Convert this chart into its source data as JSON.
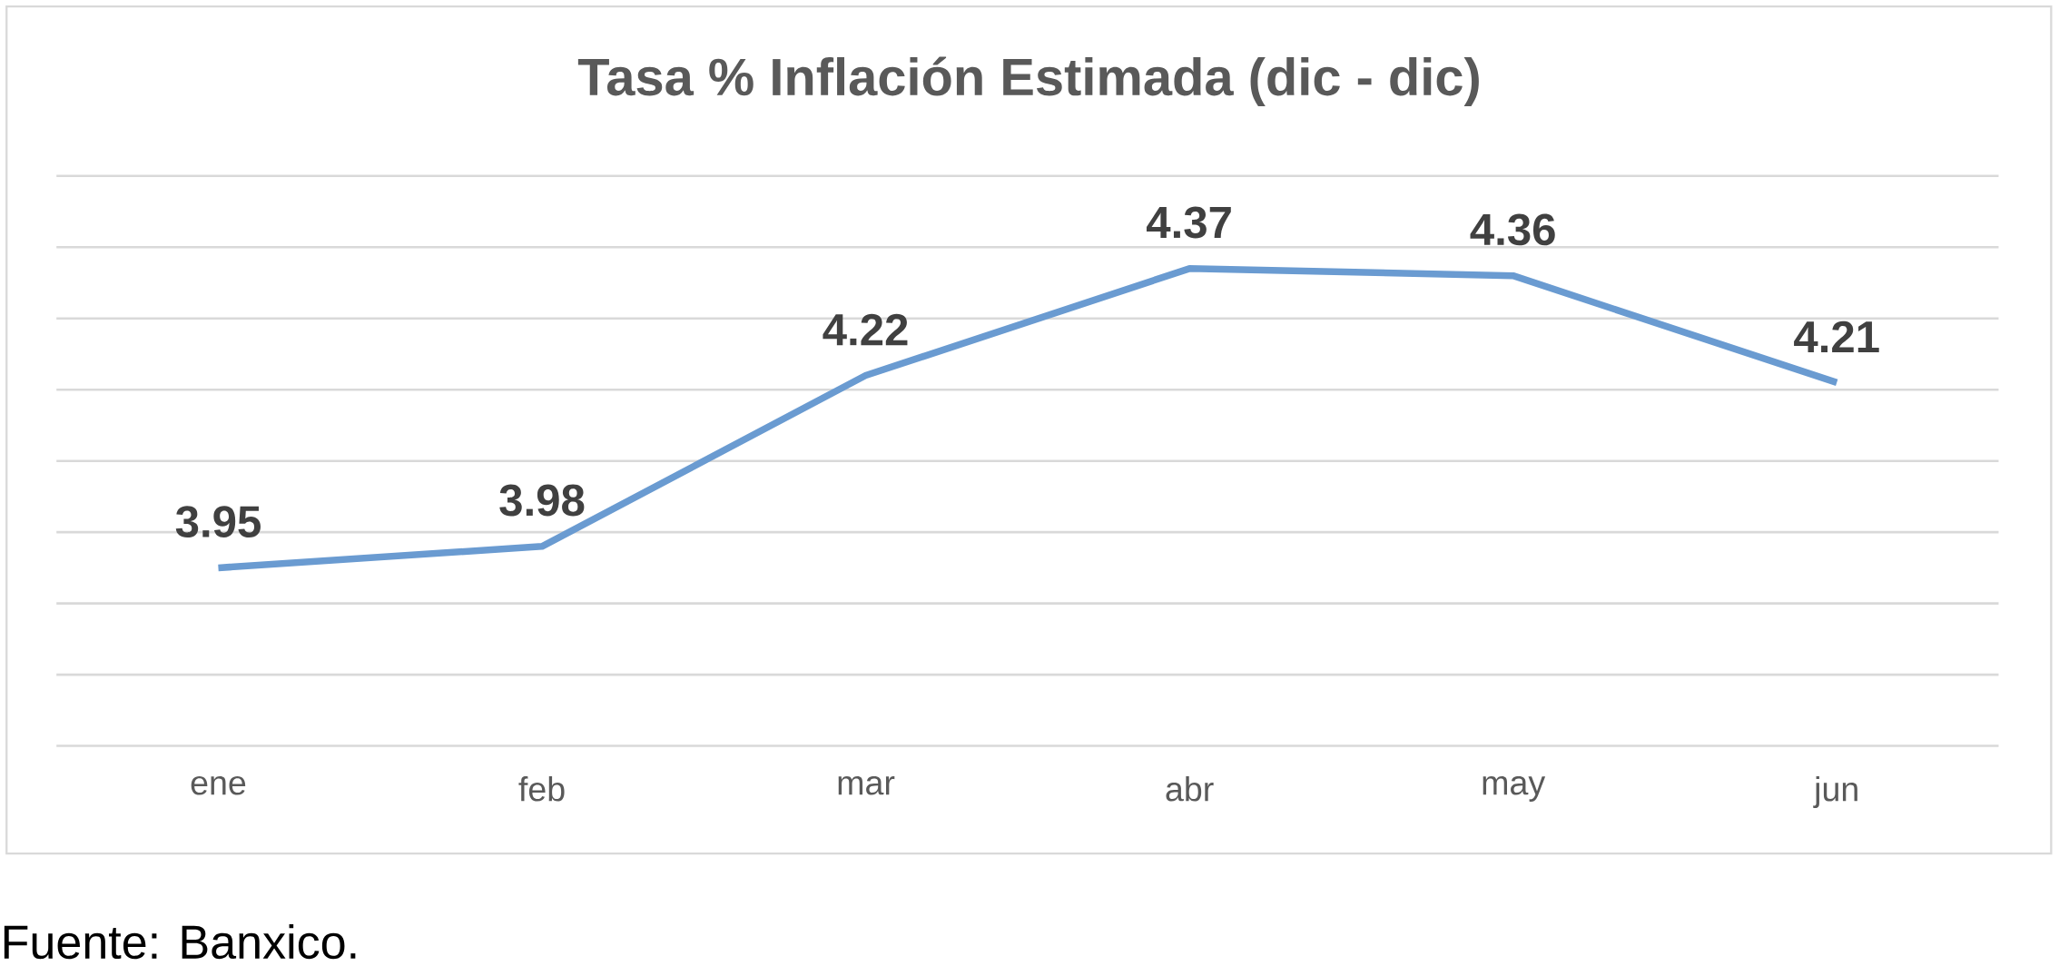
{
  "chart_data": {
    "type": "line",
    "title": "Tasa % Inflación Estimada (dic - dic)",
    "categories": [
      "ene",
      "feb",
      "mar",
      "abr",
      "may",
      "jun"
    ],
    "values": [
      3.95,
      3.98,
      4.22,
      4.37,
      4.36,
      4.21
    ],
    "color": "#6a9bd1",
    "ylim": [
      3.7,
      4.5
    ],
    "yticks": [
      {
        "value": 3.7,
        "label": null
      },
      {
        "value": 3.8,
        "label": null
      },
      {
        "value": 3.9,
        "label": null
      },
      {
        "value": 4.0,
        "label": null
      },
      {
        "value": 4.1,
        "label": null
      },
      {
        "value": 4.2,
        "label": null
      },
      {
        "value": 4.3,
        "label": null
      },
      {
        "value": 4.4,
        "label": null
      },
      {
        "value": 4.5,
        "label": null
      }
    ],
    "grid": "y",
    "tick_labels": "x",
    "data_labels": true,
    "annotations": [
      "Fuente: Banxico."
    ]
  }
}
